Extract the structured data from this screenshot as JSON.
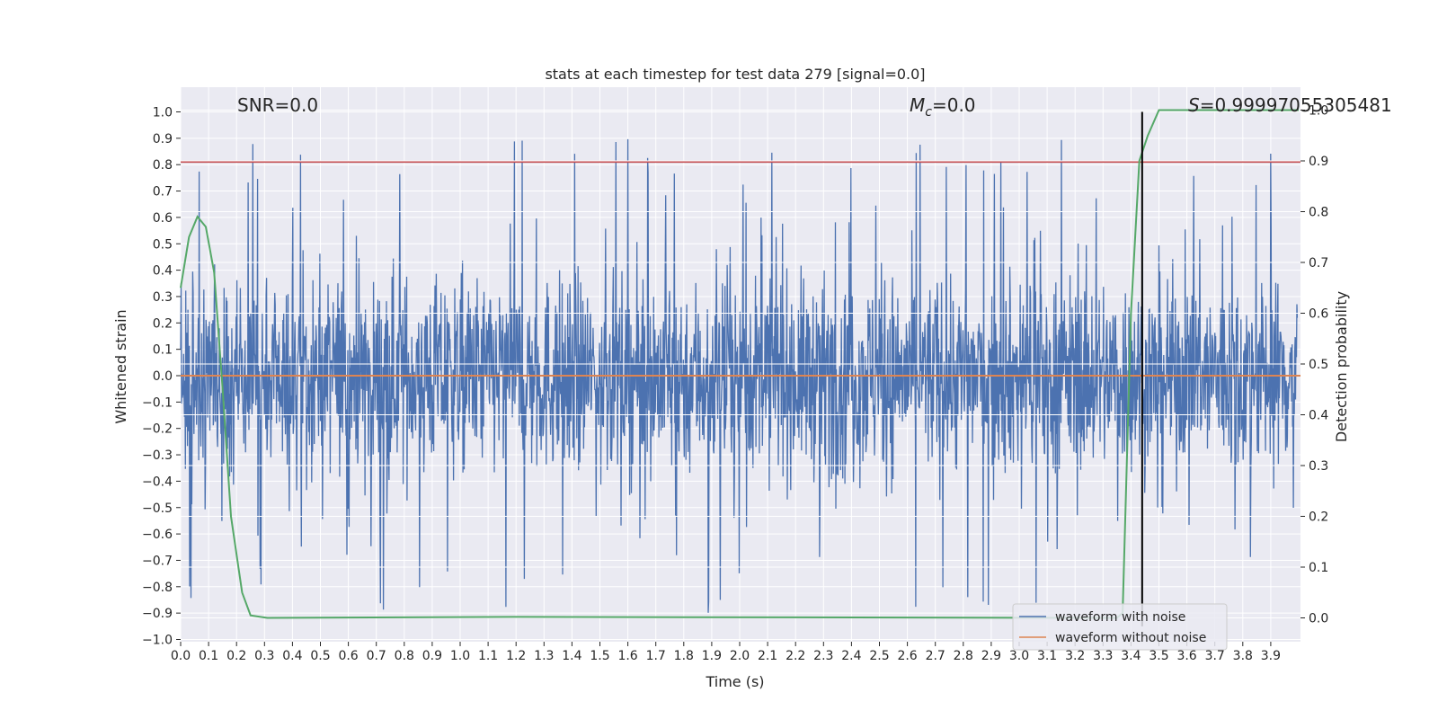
{
  "chart_data": {
    "type": "line",
    "title": "stats at each timestep for test data 279 [signal=0.0]",
    "xlabel": "Time (s)",
    "ylabel": "Whitened strain",
    "ylabel_right": "Detection probability",
    "xlim": [
      0.0,
      4.0
    ],
    "ylim": [
      -1.05,
      1.1
    ],
    "ylim_right": [
      -0.05,
      1.05
    ],
    "x_ticks": [
      "0.0",
      "0.1",
      "0.2",
      "0.3",
      "0.4",
      "0.5",
      "0.6",
      "0.7",
      "0.8",
      "0.9",
      "1.0",
      "1.1",
      "1.2",
      "1.3",
      "1.4",
      "1.5",
      "1.6",
      "1.7",
      "1.8",
      "1.9",
      "2.0",
      "2.1",
      "2.2",
      "2.3",
      "2.4",
      "2.5",
      "2.6",
      "2.7",
      "2.8",
      "2.9",
      "3.0",
      "3.1",
      "3.2",
      "3.3",
      "3.4",
      "3.5",
      "3.6",
      "3.7",
      "3.8",
      "3.9"
    ],
    "y_ticks": [
      "1.0",
      "0.9",
      "0.8",
      "0.7",
      "0.6",
      "0.5",
      "0.4",
      "0.3",
      "0.2",
      "0.1",
      "0.0",
      "−0.1",
      "−0.2",
      "−0.3",
      "−0.4",
      "−0.5",
      "−0.6",
      "−0.7",
      "−0.8",
      "−0.9",
      "−1.0"
    ],
    "y_ticks_right": [
      "1.0",
      "0.9",
      "0.8",
      "0.7",
      "0.6",
      "0.5",
      "0.4",
      "0.3",
      "0.2",
      "0.1",
      "0.0"
    ],
    "grid": true,
    "legend_position": "lower right",
    "annotations": {
      "snr": "SNR=0.0",
      "mc_symbol": "M",
      "mc_subscript": "c",
      "mc_value": "=0.0",
      "s_symbol": "S",
      "s_value": "=0.99997055305481"
    },
    "series": [
      {
        "name": "waveform with noise",
        "color": "#4c72b0",
        "description": "whitened noisy strain, approximately uniform noise between -0.9 and 1.0"
      },
      {
        "name": "waveform without noise",
        "color": "#dd8452",
        "constant": 0.0
      },
      {
        "color": "#55a868",
        "axis": "right",
        "x": [
          0.0,
          0.03,
          0.06,
          0.09,
          0.12,
          0.15,
          0.18,
          0.22,
          0.25,
          0.31,
          1.2,
          3.35,
          3.37,
          3.4,
          3.43,
          3.46,
          3.5,
          4.0
        ],
        "y": [
          0.65,
          0.75,
          0.79,
          0.77,
          0.68,
          0.45,
          0.2,
          0.05,
          0.005,
          0.0,
          0.002,
          0.0,
          0.01,
          0.6,
          0.9,
          0.95,
          1.0,
          1.0
        ]
      }
    ],
    "threshold_line": {
      "y": 0.81,
      "color": "#c44e52"
    },
    "vertical_line": {
      "x": 3.44,
      "color": "#000000",
      "y_from": -0.95,
      "y_to": 1.0
    }
  }
}
